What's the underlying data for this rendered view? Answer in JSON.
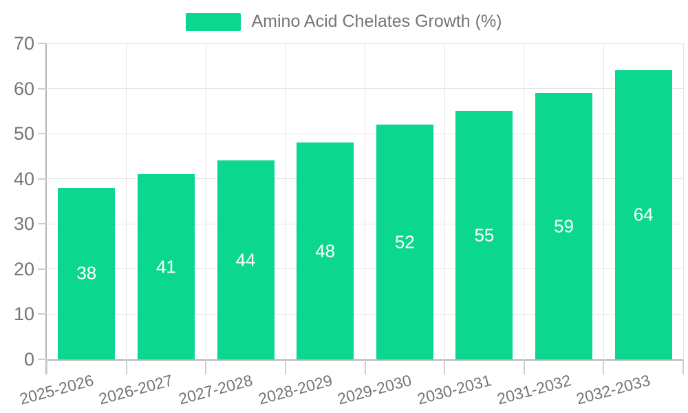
{
  "legend": {
    "label": "Amino Acid Chelates Growth (%)"
  },
  "chart_data": {
    "type": "bar",
    "title": "Amino Acid Chelates Growth (%)",
    "series_name": "Amino Acid Chelates Growth (%)",
    "categories": [
      "2025-2026",
      "2026-2027",
      "2027-2028",
      "2028-2029",
      "2029-2030",
      "2030-2031",
      "2031-2032",
      "2032-2033"
    ],
    "values": [
      38,
      41,
      44,
      48,
      52,
      55,
      59,
      64
    ],
    "xlabel": "",
    "ylabel": "",
    "ylim": [
      0,
      70
    ],
    "yticks": [
      0,
      10,
      20,
      30,
      40,
      50,
      60,
      70
    ],
    "grid": true,
    "legend_position": "top",
    "bar_labels_inside": true,
    "colors": {
      "bar": "#0BD78F",
      "bar_label": "#FFFFFF",
      "axis_text": "#757575",
      "gridline": "#E4E4E4",
      "axis_line": "#B5B5B5",
      "tick": "#CFCFCF",
      "background": "#FFFFFF"
    }
  }
}
